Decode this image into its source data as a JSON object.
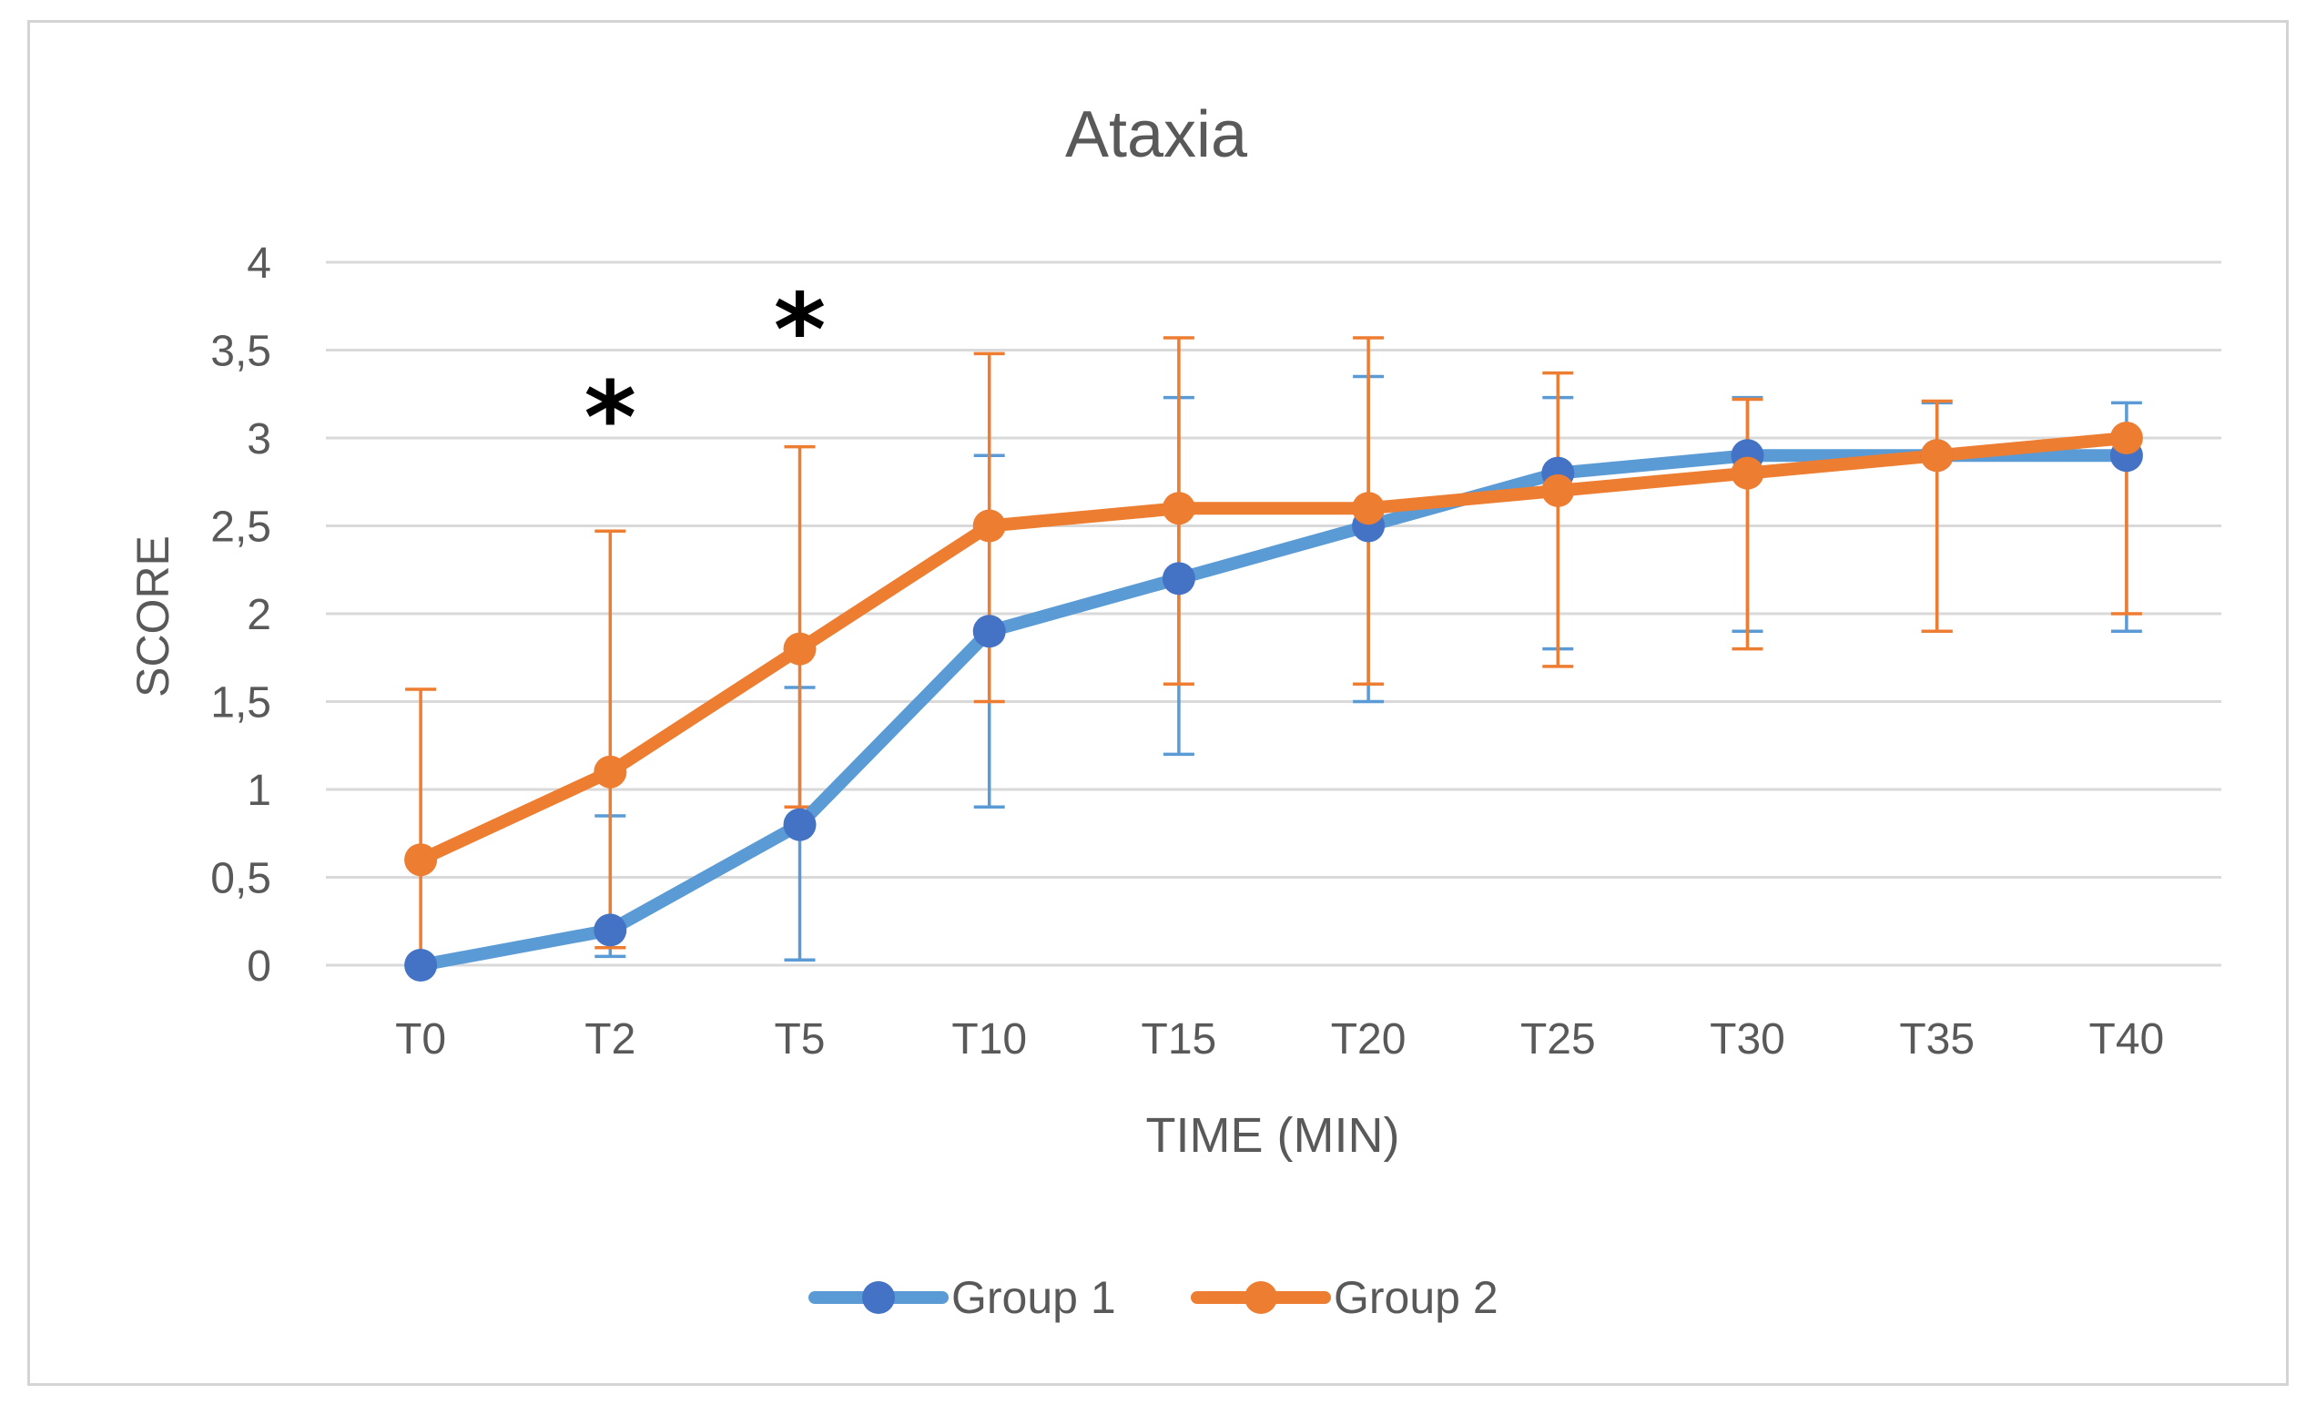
{
  "chart_data": {
    "type": "line",
    "title": "Ataxia",
    "xlabel": "TIME (MIN)",
    "ylabel": "SCORE",
    "categories": [
      "T0",
      "T2",
      "T5",
      "T10",
      "T15",
      "T20",
      "T25",
      "T30",
      "T35",
      "T40"
    ],
    "ylim": [
      0,
      4
    ],
    "yticks": [
      "0",
      "0,5",
      "1",
      "1,5",
      "2",
      "2,5",
      "3",
      "3,5",
      "4"
    ],
    "grid": true,
    "legend": "bottom",
    "annotations": [
      {
        "text": "*",
        "category": "T2",
        "y": 3.15
      },
      {
        "text": "*",
        "category": "T5",
        "y": 3.65
      }
    ],
    "series": [
      {
        "name": "Group 1",
        "color": "#5b9bd5",
        "marker_color": "#4472c4",
        "values": [
          0,
          0.2,
          0.8,
          1.9,
          2.2,
          2.5,
          2.8,
          2.9,
          2.9,
          2.9
        ],
        "err_low": [
          0,
          0.05,
          0.03,
          0.9,
          1.2,
          1.5,
          1.8,
          1.9,
          1.9,
          1.9
        ],
        "err_high": [
          0,
          0.85,
          1.58,
          2.9,
          3.23,
          3.35,
          3.23,
          3.23,
          3.2,
          3.2
        ]
      },
      {
        "name": "Group 2",
        "color": "#ed7d31",
        "marker_color": "#ed7d31",
        "values": [
          0.6,
          1.1,
          1.8,
          2.5,
          2.6,
          2.6,
          2.7,
          2.8,
          2.9,
          3.0
        ],
        "err_low": [
          0,
          0.1,
          0.9,
          1.5,
          1.6,
          1.6,
          1.7,
          1.8,
          1.9,
          2.0
        ],
        "err_high": [
          1.57,
          2.47,
          2.95,
          3.48,
          3.57,
          3.57,
          3.37,
          3.22,
          3.21,
          3.0
        ]
      }
    ]
  }
}
